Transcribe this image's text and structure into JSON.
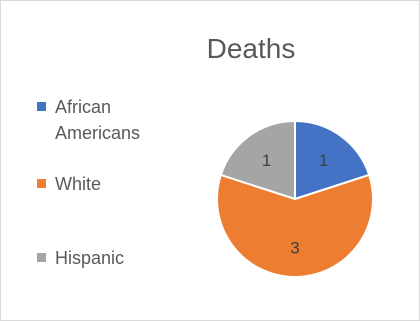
{
  "chart_data": {
    "type": "pie",
    "title": "Deaths",
    "categories": [
      "African Americans",
      "White",
      "Hispanic"
    ],
    "values": [
      1,
      3,
      1
    ],
    "colors": [
      "#4472c4",
      "#ed7d31",
      "#a5a5a5"
    ],
    "legend_position": "left",
    "data_labels": [
      "1",
      "3",
      "1"
    ]
  }
}
